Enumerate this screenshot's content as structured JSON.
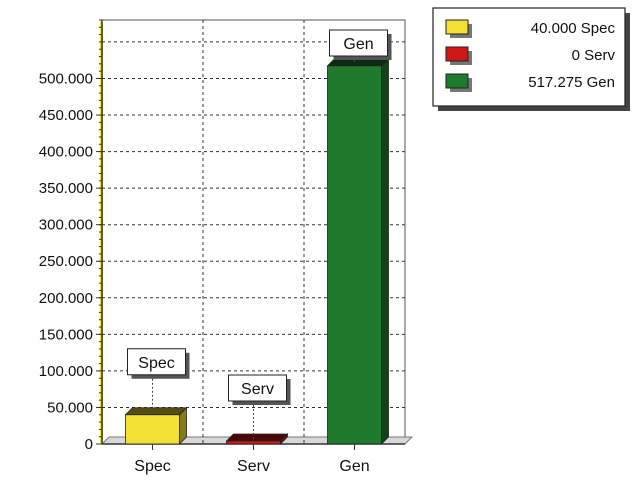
{
  "chart_data": {
    "type": "bar",
    "categories": [
      "Spec",
      "Serv",
      "Gen"
    ],
    "values": [
      40.0,
      0,
      517.275
    ],
    "value_labels": [
      "40.000 Spec",
      "0 Serv",
      "517.275 Gen"
    ],
    "data_labels": [
      "Spec",
      "Serv",
      "Gen"
    ],
    "colors": [
      "#f2e033",
      "#d01818",
      "#1f7a2e"
    ],
    "yticks": [
      0,
      50,
      100,
      150,
      200,
      250,
      300,
      350,
      400,
      450,
      500
    ],
    "ytick_labels": [
      "0",
      "50.000",
      "100.000",
      "150.000",
      "200.000",
      "250.000",
      "300.000",
      "350.000",
      "400.000",
      "450.000",
      "500.000"
    ],
    "ylim": [
      0,
      580
    ],
    "grid": true,
    "legend_position": "top-right",
    "title": "",
    "xlabel": "",
    "ylabel": ""
  }
}
